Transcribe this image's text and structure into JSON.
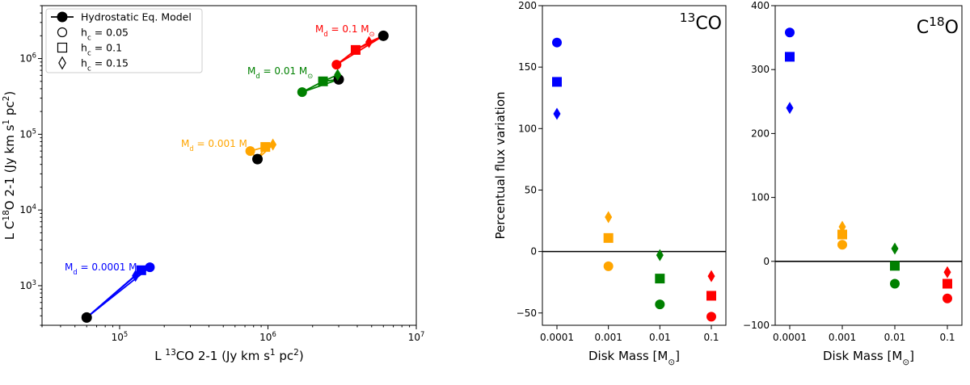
{
  "colors": {
    "m0001": "#0000ff",
    "m001": "#ffa500",
    "m01": "#008000",
    "m1": "#ff0000",
    "hydro": "#000000"
  },
  "chart_data": [
    {
      "type": "scatter",
      "xscale": "log",
      "yscale": "log",
      "xlabel_parts": [
        "L ",
        "13",
        "CO 2-1 (Jy km s",
        "1",
        " pc",
        "2",
        ")"
      ],
      "ylabel_parts": [
        "L C",
        "18",
        "O 2-1 (Jy km s",
        "1",
        " pc",
        "2",
        ")"
      ],
      "xlim": [
        30000,
        10000000
      ],
      "ylim": [
        300,
        5000000
      ],
      "xticks": [
        {
          "value": 100000,
          "base": "10",
          "exp": "5"
        },
        {
          "value": 1000000,
          "base": "10",
          "exp": "6"
        },
        {
          "value": 10000000,
          "base": "10",
          "exp": "7"
        }
      ],
      "yticks": [
        {
          "value": 1000,
          "base": "10",
          "exp": "3"
        },
        {
          "value": 10000,
          "base": "10",
          "exp": "4"
        },
        {
          "value": 100000,
          "base": "10",
          "exp": "5"
        },
        {
          "value": 1000000,
          "base": "10",
          "exp": "6"
        }
      ],
      "legend": {
        "placement": "top-left",
        "entries": [
          {
            "marker": "hydro",
            "parts": [
              "Hydrostatic Eq. Model"
            ]
          },
          {
            "marker": "circle",
            "parts": [
              "h",
              "c",
              " = 0.05"
            ]
          },
          {
            "marker": "square",
            "parts": [
              "h",
              "c",
              " = 0.1"
            ]
          },
          {
            "marker": "diamond",
            "parts": [
              "h",
              "c",
              " = 0.15"
            ]
          }
        ]
      },
      "groups": [
        {
          "color_key": "m0001",
          "label_parts": [
            "M",
            "d",
            " = 0.0001 M",
            "⊙"
          ],
          "hydrostatic": [
            60000,
            380
          ],
          "circle": [
            160000,
            1750
          ],
          "square": [
            140000,
            1600
          ],
          "diamond": [
            128000,
            1350
          ]
        },
        {
          "color_key": "m001",
          "label_parts": [
            "M",
            "d",
            " = 0.001 M",
            "⊙"
          ],
          "hydrostatic": [
            850000,
            47000
          ],
          "circle": [
            760000,
            60000
          ],
          "square": [
            960000,
            68000
          ],
          "diamond": [
            1080000,
            73000
          ]
        },
        {
          "color_key": "m01",
          "label_parts": [
            "M",
            "d",
            " = 0.01 M",
            "⊙"
          ],
          "hydrostatic": [
            3000000,
            530000
          ],
          "circle": [
            1700000,
            360000
          ],
          "square": [
            2350000,
            500000
          ],
          "diamond": [
            2950000,
            610000
          ]
        },
        {
          "color_key": "m1",
          "label_parts": [
            "M",
            "d",
            " = 0.1 M",
            "⊙"
          ],
          "hydrostatic": [
            6000000,
            2000000
          ],
          "circle": [
            2900000,
            830000
          ],
          "square": [
            3900000,
            1300000
          ],
          "diamond": [
            4800000,
            1650000
          ]
        }
      ]
    },
    {
      "type": "scatter",
      "annotation_parts": [
        "13",
        "CO"
      ],
      "xlabel_parts": [
        "Disk Mass [M",
        "⊙",
        "]"
      ],
      "ylabel": "Percentual flux variation",
      "categories": [
        "0.0001",
        "0.001",
        "0.01",
        "0.1"
      ],
      "ylim": [
        -60,
        200
      ],
      "yticks": [
        -50,
        0,
        50,
        100,
        150,
        200
      ],
      "zero_line": true,
      "series": [
        {
          "marker": "circle",
          "values": [
            170,
            -12,
            -43,
            -53
          ]
        },
        {
          "marker": "square",
          "values": [
            138,
            11,
            -22,
            -36
          ]
        },
        {
          "marker": "diamond",
          "values": [
            112,
            28,
            -3,
            -20
          ]
        }
      ]
    },
    {
      "type": "scatter",
      "annotation_parts": [
        "C",
        "18",
        "O"
      ],
      "xlabel_parts": [
        "Disk Mass [M",
        "⊙",
        "]"
      ],
      "ylabel": "",
      "categories": [
        "0.0001",
        "0.001",
        "0.01",
        "0.1"
      ],
      "ylim": [
        -100,
        400
      ],
      "yticks": [
        -100,
        0,
        100,
        200,
        300,
        400
      ],
      "zero_line": true,
      "series": [
        {
          "marker": "circle",
          "values": [
            358,
            26,
            -35,
            -58
          ]
        },
        {
          "marker": "square",
          "values": [
            320,
            42,
            -7,
            -35
          ]
        },
        {
          "marker": "diamond",
          "values": [
            240,
            54,
            20,
            -17
          ]
        }
      ]
    }
  ]
}
